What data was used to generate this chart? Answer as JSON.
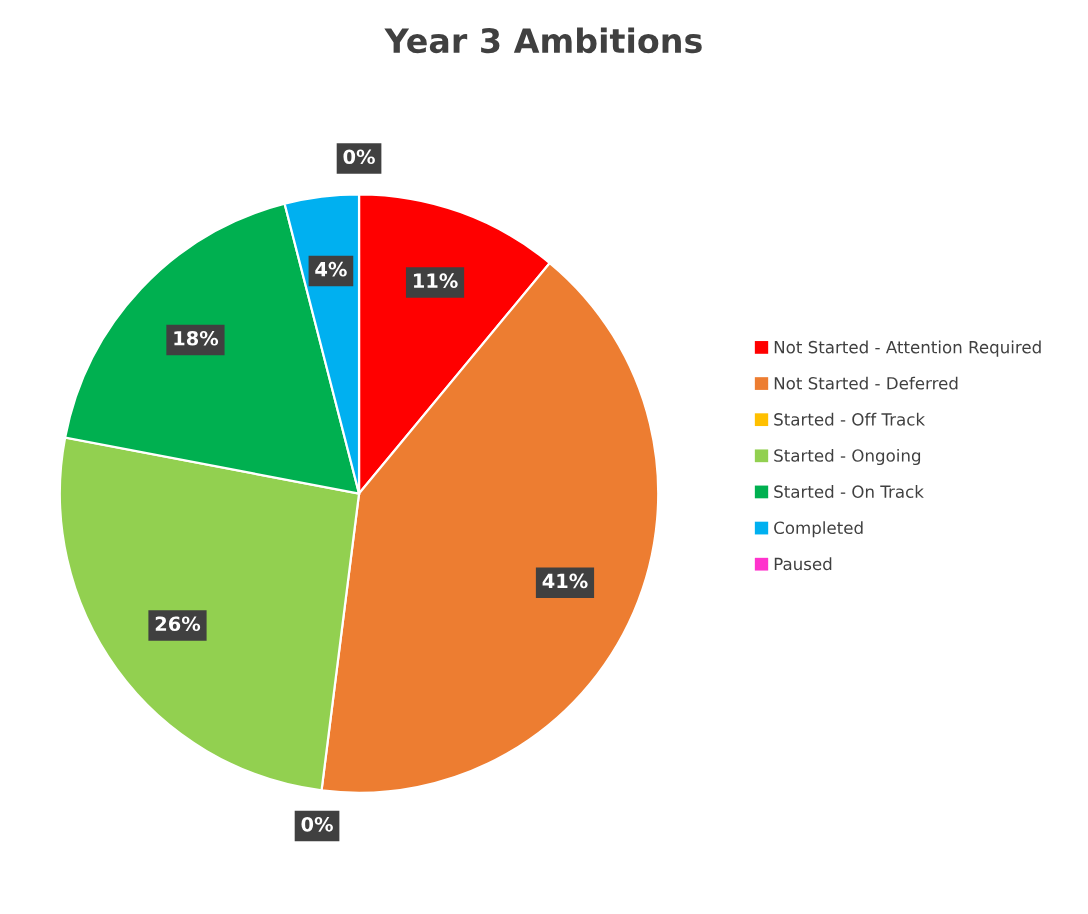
{
  "chart_data": {
    "type": "pie",
    "title": "Year 3 Ambitions",
    "categories": [
      "Not Started - Attention Required",
      "Not Started - Deferred",
      "Started - Off Track",
      "Started - Ongoing",
      "Started - On Track",
      "Completed",
      "Paused"
    ],
    "values": [
      11,
      41,
      0,
      26,
      18,
      4,
      0
    ],
    "colors": [
      "#ff0000",
      "#ed7d31",
      "#ffc000",
      "#92d050",
      "#00b050",
      "#00b0f0",
      "#ff33cc"
    ],
    "value_labels": [
      "11%",
      "41%",
      "0%",
      "26%",
      "18%",
      "4%",
      "0%"
    ],
    "legend": "right"
  }
}
